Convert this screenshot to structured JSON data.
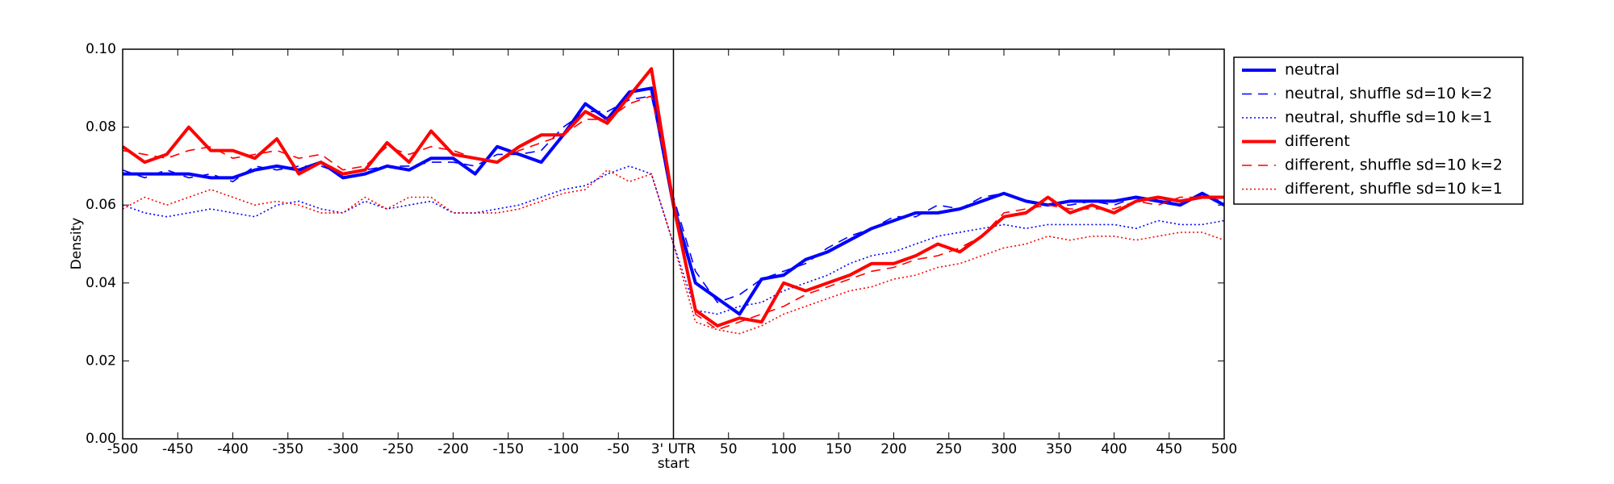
{
  "chart_data": {
    "type": "line",
    "ylabel": "Density",
    "x": [
      -500,
      -480,
      -460,
      -440,
      -420,
      -400,
      -380,
      -360,
      -340,
      -320,
      -300,
      -280,
      -260,
      -240,
      -220,
      -200,
      -180,
      -160,
      -140,
      -120,
      -100,
      -80,
      -60,
      -40,
      -20,
      0,
      20,
      40,
      60,
      80,
      100,
      120,
      140,
      160,
      180,
      200,
      220,
      240,
      260,
      280,
      300,
      320,
      340,
      360,
      380,
      400,
      420,
      440,
      460,
      480,
      500
    ],
    "series": [
      {
        "name": "neutral",
        "color": "#0000ff",
        "linestyle": "solid",
        "values": [
          0.068,
          0.068,
          0.068,
          0.068,
          0.067,
          0.067,
          0.069,
          0.07,
          0.069,
          0.071,
          0.067,
          0.068,
          0.07,
          0.069,
          0.072,
          0.072,
          0.068,
          0.075,
          0.073,
          0.071,
          0.078,
          0.086,
          0.082,
          0.089,
          0.09,
          0.06,
          0.04,
          0.036,
          0.032,
          0.041,
          0.042,
          0.046,
          0.048,
          0.051,
          0.054,
          0.056,
          0.058,
          0.058,
          0.059,
          0.061,
          0.063,
          0.061,
          0.06,
          0.061,
          0.061,
          0.061,
          0.062,
          0.061,
          0.06,
          0.063,
          0.06
        ]
      },
      {
        "name": "neutral, shuffle sd=10 k=2",
        "color": "#0000ff",
        "linestyle": "dashed",
        "values": [
          0.069,
          0.067,
          0.069,
          0.067,
          0.068,
          0.066,
          0.07,
          0.069,
          0.07,
          0.07,
          0.068,
          0.069,
          0.07,
          0.07,
          0.071,
          0.071,
          0.07,
          0.073,
          0.073,
          0.074,
          0.08,
          0.084,
          0.084,
          0.087,
          0.088,
          0.062,
          0.043,
          0.035,
          0.037,
          0.041,
          0.043,
          0.045,
          0.049,
          0.052,
          0.054,
          0.057,
          0.057,
          0.06,
          0.059,
          0.062,
          0.063,
          0.061,
          0.06,
          0.06,
          0.061,
          0.06,
          0.062,
          0.061,
          0.061,
          0.062,
          0.061
        ]
      },
      {
        "name": "neutral, shuffle sd=10 k=1",
        "color": "#0000ff",
        "linestyle": "dotted",
        "values": [
          0.06,
          0.058,
          0.057,
          0.058,
          0.059,
          0.058,
          0.057,
          0.06,
          0.061,
          0.059,
          0.058,
          0.061,
          0.059,
          0.06,
          0.061,
          0.058,
          0.058,
          0.059,
          0.06,
          0.062,
          0.064,
          0.065,
          0.068,
          0.07,
          0.068,
          0.05,
          0.033,
          0.032,
          0.034,
          0.035,
          0.038,
          0.04,
          0.042,
          0.045,
          0.047,
          0.048,
          0.05,
          0.052,
          0.053,
          0.054,
          0.055,
          0.054,
          0.055,
          0.055,
          0.055,
          0.055,
          0.054,
          0.056,
          0.055,
          0.055,
          0.056
        ]
      },
      {
        "name": "different",
        "color": "#ff0000",
        "linestyle": "solid",
        "values": [
          0.075,
          0.071,
          0.073,
          0.08,
          0.074,
          0.074,
          0.072,
          0.077,
          0.068,
          0.071,
          0.068,
          0.069,
          0.076,
          0.071,
          0.079,
          0.073,
          0.072,
          0.071,
          0.075,
          0.078,
          0.078,
          0.084,
          0.081,
          0.088,
          0.095,
          0.06,
          0.033,
          0.029,
          0.031,
          0.03,
          0.04,
          0.038,
          0.04,
          0.042,
          0.045,
          0.045,
          0.047,
          0.05,
          0.048,
          0.052,
          0.057,
          0.058,
          0.062,
          0.058,
          0.06,
          0.058,
          0.061,
          0.062,
          0.061,
          0.062,
          0.062
        ]
      },
      {
        "name": "different, shuffle sd=10 k=2",
        "color": "#ff0000",
        "linestyle": "dashed",
        "values": [
          0.074,
          0.073,
          0.072,
          0.074,
          0.075,
          0.072,
          0.073,
          0.074,
          0.072,
          0.073,
          0.069,
          0.07,
          0.075,
          0.073,
          0.075,
          0.074,
          0.072,
          0.071,
          0.074,
          0.076,
          0.078,
          0.082,
          0.082,
          0.086,
          0.088,
          0.062,
          0.032,
          0.028,
          0.03,
          0.032,
          0.034,
          0.037,
          0.039,
          0.041,
          0.043,
          0.044,
          0.046,
          0.047,
          0.049,
          0.052,
          0.058,
          0.059,
          0.06,
          0.059,
          0.059,
          0.059,
          0.061,
          0.06,
          0.062,
          0.062,
          0.062
        ]
      },
      {
        "name": "different, shuffle sd=10 k=1",
        "color": "#ff0000",
        "linestyle": "dotted",
        "values": [
          0.059,
          0.062,
          0.06,
          0.062,
          0.064,
          0.062,
          0.06,
          0.061,
          0.06,
          0.058,
          0.058,
          0.062,
          0.059,
          0.062,
          0.062,
          0.058,
          0.058,
          0.058,
          0.059,
          0.061,
          0.063,
          0.064,
          0.069,
          0.066,
          0.068,
          0.05,
          0.03,
          0.028,
          0.027,
          0.029,
          0.032,
          0.034,
          0.036,
          0.038,
          0.039,
          0.041,
          0.042,
          0.044,
          0.045,
          0.047,
          0.049,
          0.05,
          0.052,
          0.051,
          0.052,
          0.052,
          0.051,
          0.052,
          0.053,
          0.053,
          0.051
        ]
      }
    ],
    "xlim": [
      -500,
      500
    ],
    "xticks": [
      -500,
      -450,
      -400,
      -350,
      -300,
      -250,
      -200,
      -150,
      -100,
      -50,
      {
        "value": 0,
        "label": "3' UTR start"
      },
      50,
      100,
      150,
      200,
      250,
      300,
      350,
      400,
      450,
      500
    ],
    "ylim": [
      0,
      0.1
    ],
    "yticks": [
      {
        "value": 0,
        "label": "0.00"
      },
      {
        "value": 0.02,
        "label": "0.02"
      },
      {
        "value": 0.04,
        "label": "0.04"
      },
      {
        "value": 0.06,
        "label": "0.06"
      },
      {
        "value": 0.08,
        "label": "0.08"
      },
      {
        "value": 0.1,
        "label": "0.10"
      }
    ],
    "vlines": [
      0
    ],
    "grid": false,
    "legend": "outside upper right"
  }
}
